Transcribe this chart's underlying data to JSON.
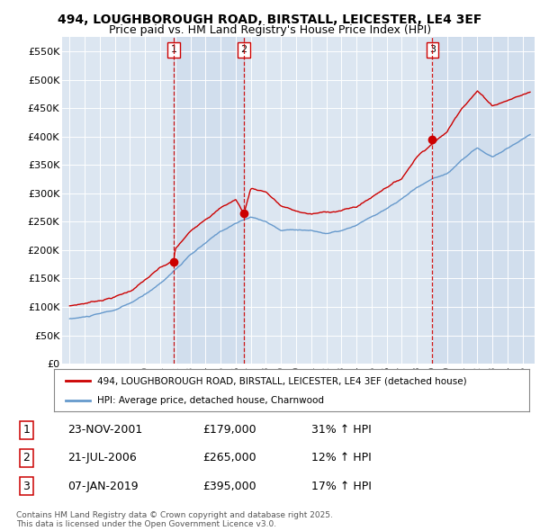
{
  "title_line1": "494, LOUGHBOROUGH ROAD, BIRSTALL, LEICESTER, LE4 3EF",
  "title_line2": "Price paid vs. HM Land Registry's House Price Index (HPI)",
  "legend_label_red": "494, LOUGHBOROUGH ROAD, BIRSTALL, LEICESTER, LE4 3EF (detached house)",
  "legend_label_blue": "HPI: Average price, detached house, Charnwood",
  "transactions": [
    {
      "num": 1,
      "date": "23-NOV-2001",
      "price": 179000,
      "pct": "31%",
      "dir": "↑",
      "year": 2001.9
    },
    {
      "num": 2,
      "date": "21-JUL-2006",
      "price": 265000,
      "pct": "12%",
      "dir": "↑",
      "year": 2006.55
    },
    {
      "num": 3,
      "date": "07-JAN-2019",
      "price": 395000,
      "pct": "17%",
      "dir": "↑",
      "year": 2019.03
    }
  ],
  "footer": "Contains HM Land Registry data © Crown copyright and database right 2025.\nThis data is licensed under the Open Government Licence v3.0.",
  "ylim": [
    0,
    575000
  ],
  "yticks": [
    0,
    50000,
    100000,
    150000,
    200000,
    250000,
    300000,
    350000,
    400000,
    450000,
    500000,
    550000
  ],
  "xlim_start": 1994.5,
  "xlim_end": 2025.8,
  "red_color": "#cc0000",
  "blue_color": "#6699cc",
  "background_plot": "#dce6f1",
  "background_fig": "#ffffff",
  "vline_color": "#cc0000",
  "vfill_color": "#c8d8ea"
}
